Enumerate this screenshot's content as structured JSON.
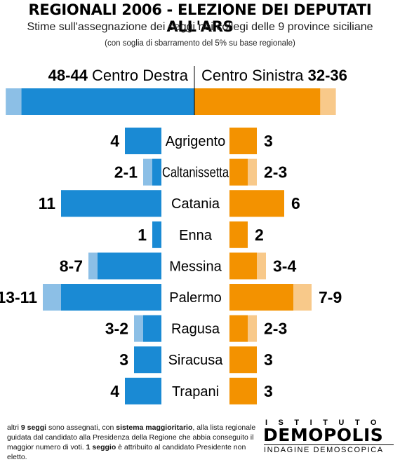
{
  "title": "REGIONALI 2006 - ELEZIONE DEI DEPUTATI ALL'ARS",
  "subtitle": "Stime sull'assegnazione dei seggi nei collegi delle 9 province siciliane",
  "note": "(con soglia di sbarramento del 5% su base regionale)",
  "colors": {
    "destra": "#1a8ad4",
    "destra_light": "#8cbfe6",
    "sinistra": "#f39200",
    "sinistra_light": "#f8c98a",
    "divider": "#000000"
  },
  "chart_data": [
    {
      "type": "bar",
      "orientation": "horizontal",
      "series": [
        {
          "name": "Centro Destra",
          "label": "48-44",
          "min": 44,
          "max": 48
        },
        {
          "name": "Centro Sinistra",
          "label": "32-36",
          "min": 32,
          "max": 36
        }
      ]
    },
    {
      "type": "bar",
      "orientation": "horizontal",
      "categories": [
        "Agrigento",
        "Caltanissetta",
        "Catania",
        "Enna",
        "Messina",
        "Palermo",
        "Ragusa",
        "Siracusa",
        "Trapani"
      ],
      "series": [
        {
          "name": "Centro Destra",
          "labels": [
            "4",
            "2-1",
            "11",
            "1",
            "8-7",
            "13-11",
            "3-2",
            "3",
            "4"
          ],
          "min": [
            4,
            1,
            11,
            1,
            7,
            11,
            2,
            3,
            4
          ],
          "max": [
            4,
            2,
            11,
            1,
            8,
            13,
            3,
            3,
            4
          ]
        },
        {
          "name": "Centro Sinistra",
          "labels": [
            "3",
            "2-3",
            "6",
            "2",
            "3-4",
            "7-9",
            "2-3",
            "3",
            "3"
          ],
          "min": [
            3,
            2,
            6,
            2,
            3,
            7,
            2,
            3,
            3
          ],
          "max": [
            3,
            3,
            6,
            2,
            4,
            9,
            3,
            3,
            3
          ]
        }
      ]
    }
  ],
  "footnote": {
    "t1": "altri ",
    "b1": "9 seggi",
    "t2": " sono assegnati, con ",
    "b2": "sistema maggioritario",
    "t3": ", alla lista regionale guidata dal candidato alla Presidenza della Regione che abbia conseguito il maggior numero di voti. ",
    "b3": "1 seggio",
    "t4": " è attribuito al candidato Presidente non eletto."
  },
  "logo": {
    "top": "ISTITUTO",
    "main": "DEMOPOLIS",
    "bottom": "INDAGINE DEMOSCOPICA"
  }
}
